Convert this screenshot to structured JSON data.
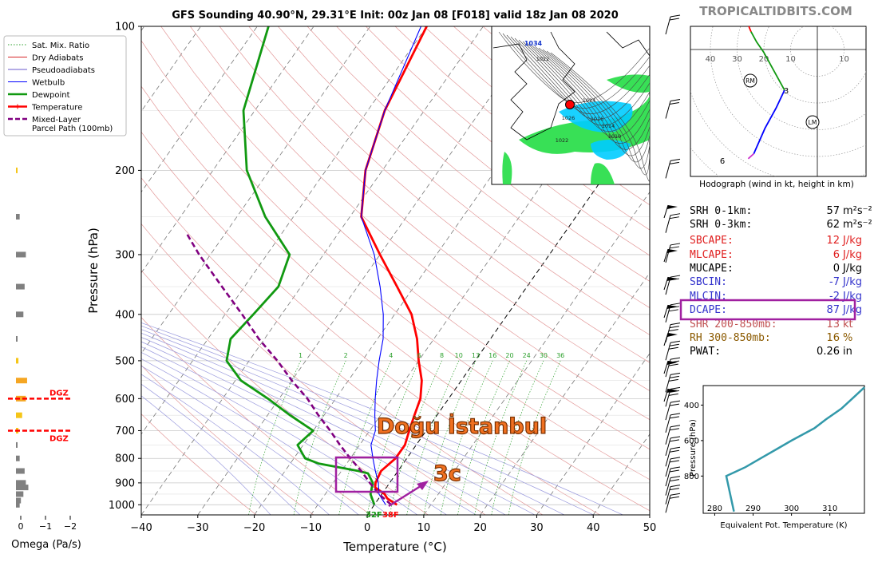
{
  "chart_data": [
    {
      "id": "skewt",
      "type": "line",
      "title": "GFS Sounding 40.90°N, 29.31°E Init: 00z Jan 08 [F018] valid 18z Jan 08 2020",
      "watermark": "TROPICALTIDBITS.COM",
      "xlabel": "Temperature (°C)",
      "ylabel": "Pressure (hPa)",
      "xlim": [
        -40,
        50
      ],
      "ylim": [
        1050,
        100
      ],
      "y_scale": "log",
      "skew": true,
      "x_ticks": [
        -40,
        -30,
        -20,
        -10,
        0,
        10,
        20,
        30,
        40,
        50
      ],
      "y_ticks": [
        100,
        200,
        300,
        400,
        500,
        600,
        700,
        800,
        900,
        1000
      ],
      "mixing_ratio_labels": [
        "1",
        "2",
        "4",
        "6",
        "8",
        "10",
        "13",
        "16",
        "20",
        "24",
        "30",
        "36"
      ],
      "legend": {
        "placement": "top-left",
        "entries": [
          {
            "label": "Sat. Mix. Ratio",
            "color": "#2ca02c",
            "style": "dotted"
          },
          {
            "label": "Dry Adiabats",
            "color": "#d62728",
            "style": "solid-thin"
          },
          {
            "label": "Pseudoadiabats",
            "color": "#6a5acd",
            "style": "solid-thin"
          },
          {
            "label": "Wetbulb",
            "color": "#0000ff",
            "style": "solid"
          },
          {
            "label": "Dewpoint",
            "color": "#119911",
            "style": "solid-thick"
          },
          {
            "label": "Temperature",
            "color": "#ff0000",
            "style": "solid-thick"
          },
          {
            "label": "Mixed-Layer\nParcel Path (100mb)",
            "color": "#800080",
            "style": "dashed"
          }
        ]
      },
      "series": [
        {
          "name": "Temperature",
          "color": "#ff0000",
          "points": [
            [
              1000,
              4
            ],
            [
              970,
              1.5
            ],
            [
              950,
              0.5
            ],
            [
              920,
              -2
            ],
            [
              900,
              -2.5
            ],
            [
              850,
              -3
            ],
            [
              800,
              -2
            ],
            [
              750,
              -2
            ],
            [
              700,
              -3
            ],
            [
              650,
              -4
            ],
            [
              600,
              -5
            ],
            [
              550,
              -7
            ],
            [
              500,
              -10
            ],
            [
              450,
              -13
            ],
            [
              400,
              -17
            ],
            [
              350,
              -23
            ],
            [
              300,
              -30
            ],
            [
              250,
              -38
            ],
            [
              200,
              -43
            ],
            [
              150,
              -47
            ],
            [
              100,
              -50
            ]
          ]
        },
        {
          "name": "Dewpoint",
          "color": "#119911",
          "points": [
            [
              1000,
              0
            ],
            [
              950,
              -2
            ],
            [
              900,
              -3
            ],
            [
              860,
              -5
            ],
            [
              850,
              -7
            ],
            [
              820,
              -15
            ],
            [
              800,
              -18
            ],
            [
              750,
              -21
            ],
            [
              700,
              -20
            ],
            [
              650,
              -26
            ],
            [
              600,
              -32
            ],
            [
              550,
              -39
            ],
            [
              500,
              -44
            ],
            [
              450,
              -46
            ],
            [
              400,
              -45
            ],
            [
              350,
              -44
            ],
            [
              300,
              -46
            ],
            [
              250,
              -55
            ],
            [
              200,
              -64
            ],
            [
              150,
              -72
            ],
            [
              100,
              -78
            ]
          ]
        },
        {
          "name": "Wetbulb",
          "color": "#0000ff",
          "points": [
            [
              1000,
              2
            ],
            [
              950,
              -0.5
            ],
            [
              900,
              -2
            ],
            [
              850,
              -4
            ],
            [
              800,
              -6
            ],
            [
              750,
              -8
            ],
            [
              700,
              -9
            ],
            [
              650,
              -11
            ],
            [
              600,
              -13
            ],
            [
              550,
              -15
            ],
            [
              500,
              -17
            ],
            [
              450,
              -19
            ],
            [
              400,
              -22
            ],
            [
              350,
              -26
            ],
            [
              300,
              -31
            ],
            [
              250,
              -38
            ],
            [
              200,
              -43
            ],
            [
              150,
              -47
            ],
            [
              100,
              -51
            ]
          ]
        },
        {
          "name": "Mixed-Layer Parcel Path (100mb)",
          "color": "#800080",
          "points": [
            [
              1000,
              3
            ],
            [
              950,
              -0.5
            ],
            [
              900,
              -3.5
            ],
            [
              850,
              -6.5
            ],
            [
              800,
              -10
            ],
            [
              750,
              -13.5
            ],
            [
              700,
              -17
            ],
            [
              650,
              -21
            ],
            [
              600,
              -25
            ],
            [
              550,
              -30
            ],
            [
              500,
              -35
            ],
            [
              450,
              -41
            ],
            [
              400,
              -47
            ],
            [
              350,
              -54
            ],
            [
              300,
              -62
            ],
            [
              270,
              -67
            ]
          ]
        }
      ],
      "surface_labels": {
        "dewpoint": "32F",
        "temperature": "38F"
      },
      "dgz_label": "DGZ",
      "annotations": [
        {
          "text": "Doğu İstanbul",
          "color": "#f07020"
        },
        {
          "text": "3c",
          "color": "#f07020"
        }
      ]
    },
    {
      "id": "omega",
      "type": "bar",
      "xlabel": "Omega (Pa/s)",
      "x_ticks": [
        "0",
        "−1",
        "−2"
      ],
      "points": [
        {
          "p": 200,
          "v": -0.05,
          "color": "#f5c518"
        },
        {
          "p": 250,
          "v": -0.15,
          "color": "#808080"
        },
        {
          "p": 300,
          "v": -0.4,
          "color": "#808080"
        },
        {
          "p": 350,
          "v": -0.35,
          "color": "#808080"
        },
        {
          "p": 400,
          "v": -0.3,
          "color": "#808080"
        },
        {
          "p": 450,
          "v": -0.05,
          "color": "#808080"
        },
        {
          "p": 500,
          "v": -0.1,
          "color": "#f5c518"
        },
        {
          "p": 550,
          "v": -0.45,
          "color": "#f5a623"
        },
        {
          "p": 600,
          "v": -0.4,
          "color": "#f5a623"
        },
        {
          "p": 650,
          "v": -0.25,
          "color": "#f5c518"
        },
        {
          "p": 700,
          "v": -0.1,
          "color": "#f5c518"
        },
        {
          "p": 750,
          "v": -0.05,
          "color": "#808080"
        },
        {
          "p": 800,
          "v": -0.15,
          "color": "#808080"
        },
        {
          "p": 850,
          "v": -0.35,
          "color": "#808080"
        },
        {
          "p": 900,
          "v": -0.4,
          "color": "#808080"
        },
        {
          "p": 920,
          "v": -0.5,
          "color": "#808080"
        },
        {
          "p": 950,
          "v": -0.3,
          "color": "#808080"
        },
        {
          "p": 980,
          "v": -0.2,
          "color": "#808080"
        },
        {
          "p": 1000,
          "v": -0.15,
          "color": "#808080"
        }
      ],
      "dgz_levels": [
        600,
        700
      ]
    },
    {
      "id": "hodograph",
      "type": "line",
      "xlabel": "Hodograph (wind in kt, height in km)",
      "ring_labels": [
        "40",
        "30",
        "20",
        "10",
        "10"
      ],
      "markers": [
        "RM",
        "LM"
      ],
      "height_labels": [
        "6",
        "3"
      ],
      "segments": [
        {
          "color": "#cc33cc",
          "points": [
            [
              -24,
              -43
            ],
            [
              -22,
              -42
            ],
            [
              -20,
              -41
            ]
          ]
        },
        {
          "color": "#0000ff",
          "points": [
            [
              -20,
              -41
            ],
            [
              -12,
              -31
            ],
            [
              -4,
              -23
            ],
            [
              2,
              -16
            ]
          ]
        },
        {
          "color": "#119911",
          "points": [
            [
              2,
              -16
            ],
            [
              -1,
              -13
            ],
            [
              -4,
              -10
            ],
            [
              -8,
              -6
            ],
            [
              -13,
              -1
            ],
            [
              -18,
              3
            ],
            [
              -22,
              7
            ]
          ]
        },
        {
          "color": "#ff0000",
          "points": [
            [
              -22,
              7
            ],
            [
              -25,
              11
            ],
            [
              -28,
              16
            ]
          ]
        }
      ]
    },
    {
      "id": "theta_e",
      "type": "line",
      "xlabel": "Equivalent Pot. Temperature (K)",
      "ylabel": "Pressure (hPa)",
      "x_ticks": [
        280,
        290,
        300,
        310
      ],
      "y_ticks": [
        400,
        600,
        800
      ],
      "xlim": [
        277,
        319
      ],
      "ylim": [
        1010,
        290
      ],
      "color": "#3399aa",
      "points": [
        [
          285,
          1000
        ],
        [
          284.5,
          950
        ],
        [
          284,
          900
        ],
        [
          283.5,
          850
        ],
        [
          283,
          800
        ],
        [
          285,
          780
        ],
        [
          288,
          750
        ],
        [
          292,
          700
        ],
        [
          296,
          650
        ],
        [
          300,
          600
        ],
        [
          306,
          530
        ],
        [
          309,
          480
        ],
        [
          313,
          420
        ],
        [
          316,
          360
        ],
        [
          319,
          300
        ]
      ]
    }
  ],
  "indices": [
    {
      "label": "SRH 0-1km:",
      "value": "57",
      "unit": "m²s⁻²",
      "color": "#000000"
    },
    {
      "label": "SRH 0-3km:",
      "value": "62",
      "unit": "m²s⁻²",
      "color": "#000000"
    },
    {
      "label": "SBCAPE:",
      "value": "12",
      "unit": "J/kg",
      "color": "#e02020"
    },
    {
      "label": "MLCAPE:",
      "value": "6",
      "unit": "J/kg",
      "color": "#e02020"
    },
    {
      "label": "MUCAPE:",
      "value": "0",
      "unit": "J/kg",
      "color": "#000000"
    },
    {
      "label": "SBCIN:",
      "value": "-7",
      "unit": "J/kg",
      "color": "#3333cc"
    },
    {
      "label": "MLCIN:",
      "value": "-2",
      "unit": "J/kg",
      "color": "#3333cc"
    },
    {
      "label": "DCAPE:",
      "value": "87",
      "unit": "J/kg",
      "color": "#3333cc"
    },
    {
      "label": "SHR 200-850mb:",
      "value": "13",
      "unit": "kt",
      "color": "#c05050"
    },
    {
      "label": "RH 300-850mb:",
      "value": "16",
      "unit": "%",
      "color": "#8b5a00"
    },
    {
      "label": "PWAT:",
      "value": "0.26",
      "unit": "in",
      "color": "#000000"
    }
  ],
  "highlight_color": "#a020a0",
  "inset_map": {
    "labels": [
      "1034",
      "1022",
      "1026",
      "1024",
      "1016",
      "1014",
      "1010",
      "1022"
    ],
    "marker_color": "#ff0000"
  }
}
